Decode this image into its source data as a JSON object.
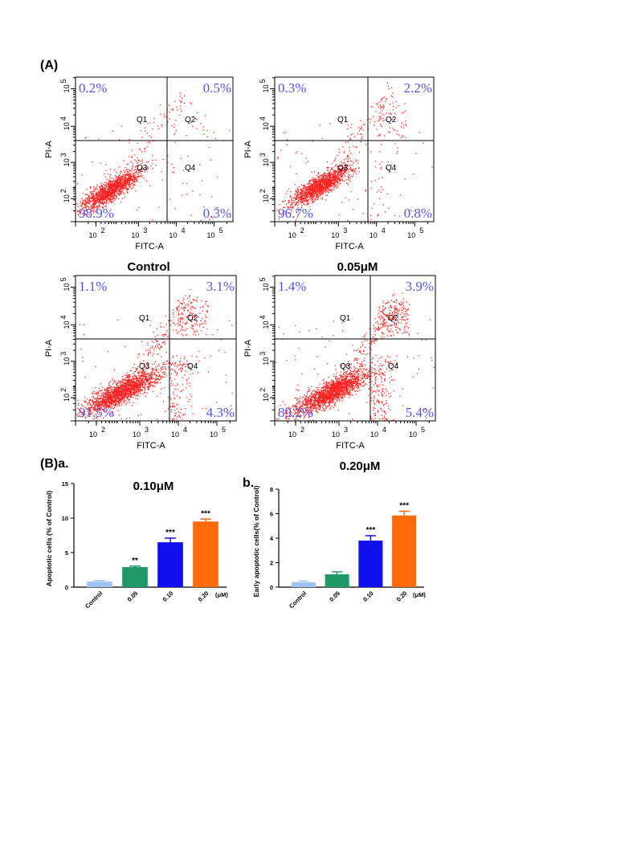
{
  "labels": {
    "panel_A": "(A)",
    "panel_B": "(B)a.",
    "panel_b": "b."
  },
  "flow_plots": [
    {
      "condition": "Control",
      "q1": "0.2%",
      "q2": "0.5%",
      "q3": "98.9%",
      "q4": "0.3%",
      "x_title": "FITC-A",
      "y_title": "PI-A",
      "quadrants": [
        "Q1",
        "Q2",
        "Q3",
        "Q4"
      ],
      "x_ticks": [
        "10",
        "10",
        "10",
        "10"
      ],
      "x_exps": [
        "2",
        "3",
        "4",
        "5"
      ],
      "y_ticks": [
        "10",
        "10",
        "10",
        "10"
      ],
      "y_exps": [
        "2",
        "3",
        "4",
        "5"
      ]
    },
    {
      "condition": "0.05μM",
      "q1": "0.3%",
      "q2": "2.2%",
      "q3": "96.7%",
      "q4": "0.8%",
      "x_title": "FITC-A",
      "y_title": "PI-A",
      "quadrants": [
        "Q1",
        "Q2",
        "Q3",
        "Q4"
      ],
      "x_ticks": [
        "10",
        "10",
        "10",
        "10"
      ],
      "x_exps": [
        "2",
        "3",
        "4",
        "5"
      ],
      "y_ticks": [
        "10",
        "10",
        "10",
        "10"
      ],
      "y_exps": [
        "2",
        "3",
        "4",
        "5"
      ]
    },
    {
      "condition": "0.10μM",
      "q1": "1.1%",
      "q2": "3.1%",
      "q3": "91.5%",
      "q4": "4.3%",
      "x_title": "FITC-A",
      "y_title": "PI-A",
      "quadrants": [
        "Q1",
        "Q2",
        "Q3",
        "Q4"
      ],
      "x_ticks": [
        "10",
        "10",
        "10",
        "10"
      ],
      "x_exps": [
        "2",
        "3",
        "4",
        "5"
      ],
      "y_ticks": [
        "10",
        "10",
        "10",
        "10"
      ],
      "y_exps": [
        "2",
        "3",
        "4",
        "5"
      ]
    },
    {
      "condition": "0.20μM",
      "q1": "1.4%",
      "q2": "3.9%",
      "q3": "89.2%",
      "q4": "5.4%",
      "x_title": "FITC-A",
      "y_title": "PI-A",
      "quadrants": [
        "Q1",
        "Q2",
        "Q3",
        "Q4"
      ],
      "x_ticks": [
        "10",
        "10",
        "10",
        "10"
      ],
      "x_exps": [
        "2",
        "3",
        "4",
        "5"
      ],
      "y_ticks": [
        "10",
        "10",
        "10",
        "10"
      ],
      "y_exps": [
        "2",
        "3",
        "4",
        "5"
      ]
    }
  ],
  "chart_data": [
    {
      "type": "bar",
      "ylabel": "Apoptotic cells (% of Control)",
      "categories": [
        "Control",
        "0.05",
        "0.10",
        "0.20"
      ],
      "unit_label": "(μM)",
      "values": [
        0.8,
        2.9,
        6.5,
        9.5
      ],
      "errors": [
        0.15,
        0.15,
        0.6,
        0.35
      ],
      "significance": [
        "",
        "**",
        "***",
        "***"
      ],
      "colors": [
        "#9ec4f5",
        "#1f9966",
        "#1010ee",
        "#ff6a0a"
      ],
      "ylim": [
        0,
        15
      ],
      "yticks": [
        0,
        5,
        10,
        15
      ]
    },
    {
      "type": "bar",
      "ylabel": "Early apoptotic cells(% of Control)",
      "categories": [
        "Control",
        "0.05",
        "0.10",
        "0.20"
      ],
      "unit_label": "(μM)",
      "values": [
        0.4,
        1.05,
        3.8,
        5.85
      ],
      "errors": [
        0.1,
        0.2,
        0.4,
        0.35
      ],
      "significance": [
        "",
        "",
        "***",
        "***"
      ],
      "colors": [
        "#9ec4f5",
        "#1f9966",
        "#1010ee",
        "#ff6a0a"
      ],
      "ylim": [
        0,
        8
      ],
      "yticks": [
        0,
        2,
        4,
        6,
        8
      ]
    }
  ]
}
